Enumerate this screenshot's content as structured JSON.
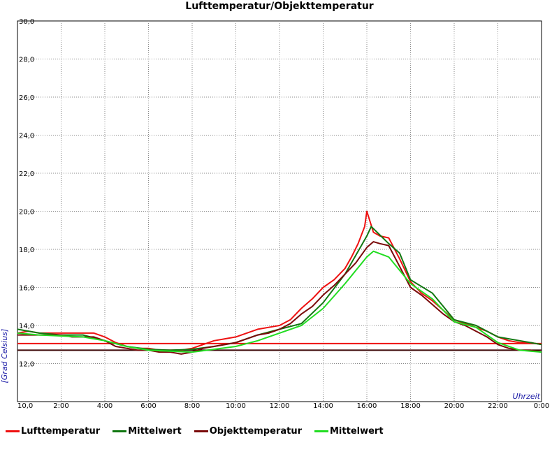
{
  "chart_data": {
    "type": "line",
    "title": "Lufttemperatur/Objekttemperatur",
    "xlabel": "Uhrzeit",
    "ylabel": "[Grad Celsius]",
    "xlim": [
      0,
      24
    ],
    "ylim": [
      10,
      30
    ],
    "x_tick_labels": [
      "10,0",
      "2:00",
      "4:00",
      "6:00",
      "8:00",
      "10:00",
      "12:00",
      "14:00",
      "16:00",
      "18:00",
      "20:00",
      "22:00",
      "0:00"
    ],
    "y_tick_labels": [
      "12,0",
      "14,0",
      "16,0",
      "18,0",
      "20,0",
      "22,0",
      "24,0",
      "26,0",
      "28,0",
      "30,0"
    ],
    "grid": true,
    "legend_position": "bottom",
    "series": [
      {
        "name": "Lufttemperatur",
        "color": "#ee1111",
        "x": [
          0,
          0.5,
          1,
          1.5,
          2,
          2.5,
          3,
          3.5,
          4,
          4.5,
          5,
          5.5,
          6,
          6.5,
          7,
          7.5,
          8,
          8.5,
          9,
          9.5,
          10,
          10.5,
          11,
          11.5,
          12,
          12.5,
          13,
          13.5,
          14,
          14.5,
          15,
          15.3,
          15.6,
          15.9,
          16,
          16.3,
          16.6,
          17,
          17.5,
          18,
          18.5,
          19,
          19.5,
          20,
          20.5,
          21,
          21.5,
          22,
          22.5,
          23,
          23.5,
          24
        ],
        "values": [
          13.6,
          13.7,
          13.6,
          13.6,
          13.6,
          13.6,
          13.6,
          13.6,
          13.4,
          13.1,
          12.9,
          12.8,
          12.8,
          12.7,
          12.7,
          12.7,
          12.8,
          13.0,
          13.2,
          13.3,
          13.4,
          13.6,
          13.8,
          13.9,
          14.0,
          14.3,
          14.9,
          15.4,
          16.0,
          16.4,
          17.0,
          17.6,
          18.3,
          19.2,
          20.0,
          18.9,
          18.7,
          18.6,
          17.5,
          16.3,
          15.7,
          15.3,
          14.8,
          14.3,
          14.1,
          13.9,
          13.7,
          13.4,
          13.2,
          13.1,
          13.1,
          13.0
        ]
      },
      {
        "name": "Mittelwert",
        "color": "#117711",
        "x": [
          0,
          1,
          2,
          3,
          4,
          5,
          6,
          7,
          8,
          9,
          10,
          11,
          12,
          13,
          14,
          15,
          16,
          16.2,
          17,
          17.5,
          18,
          19,
          20,
          21,
          22,
          23,
          24
        ],
        "values": [
          13.8,
          13.6,
          13.5,
          13.5,
          13.2,
          12.9,
          12.75,
          12.7,
          12.75,
          12.9,
          13.1,
          13.5,
          13.8,
          14.1,
          15.2,
          16.7,
          18.7,
          19.2,
          18.3,
          17.8,
          16.4,
          15.7,
          14.3,
          14.0,
          13.4,
          13.2,
          13.0
        ]
      },
      {
        "name": "Objekttemperatur",
        "color": "#7a0a0a",
        "x": [
          0,
          0.5,
          1,
          1.5,
          2,
          2.5,
          3,
          3.5,
          4,
          4.5,
          5,
          5.5,
          6,
          6.5,
          7,
          7.5,
          8,
          8.5,
          9,
          9.5,
          10,
          10.5,
          11,
          11.5,
          12,
          12.5,
          13,
          13.5,
          14,
          14.5,
          15,
          15.5,
          16,
          16.3,
          16.6,
          17,
          17.5,
          18,
          18.5,
          19,
          19.5,
          20,
          20.5,
          21,
          21.5,
          22,
          22.5,
          23,
          23.5,
          24
        ],
        "values": [
          13.5,
          13.5,
          13.5,
          13.5,
          13.5,
          13.4,
          13.4,
          13.4,
          13.2,
          12.9,
          12.8,
          12.7,
          12.7,
          12.6,
          12.6,
          12.5,
          12.6,
          12.8,
          12.9,
          13.0,
          13.1,
          13.3,
          13.5,
          13.6,
          13.8,
          14.1,
          14.6,
          15.0,
          15.6,
          16.1,
          16.7,
          17.3,
          18.1,
          18.4,
          18.3,
          18.2,
          17.1,
          16.0,
          15.6,
          15.1,
          14.6,
          14.2,
          14.0,
          13.7,
          13.4,
          13.0,
          12.8,
          12.7,
          12.7,
          12.6
        ]
      },
      {
        "name": "Mittelwert",
        "color": "#22dd22",
        "x": [
          0,
          1,
          2,
          3,
          4,
          5,
          6,
          7,
          8,
          9,
          10,
          11,
          12,
          13,
          14,
          15,
          16,
          16.3,
          17,
          18,
          19,
          20,
          21,
          22,
          23,
          24
        ],
        "values": [
          13.6,
          13.5,
          13.45,
          13.4,
          13.2,
          12.9,
          12.7,
          12.65,
          12.6,
          12.75,
          12.9,
          13.2,
          13.6,
          14.0,
          14.9,
          16.2,
          17.6,
          17.9,
          17.6,
          16.2,
          15.4,
          14.2,
          13.9,
          13.1,
          12.7,
          12.6
        ]
      }
    ],
    "reference_lines": [
      {
        "color": "#ee1111",
        "value": 13.05
      },
      {
        "color": "#3a0505",
        "value": 12.7
      }
    ]
  }
}
